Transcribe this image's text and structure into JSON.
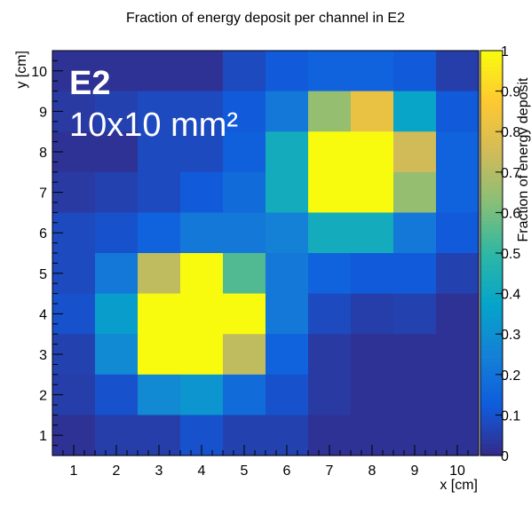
{
  "chart_data": {
    "type": "heatmap",
    "title": "Fraction of energy deposit per channel in E2",
    "xlabel": "x [cm]",
    "ylabel": "y [cm]",
    "zlabel": "Fraction of energy deposit",
    "x_ticks": [
      "1",
      "2",
      "3",
      "4",
      "5",
      "6",
      "7",
      "8",
      "9",
      "10"
    ],
    "y_ticks": [
      "1",
      "2",
      "3",
      "4",
      "5",
      "6",
      "7",
      "8",
      "9",
      "10"
    ],
    "z_ticks": [
      "0",
      "0.1",
      "0.2",
      "0.3",
      "0.4",
      "0.5",
      "0.6",
      "0.7",
      "0.8",
      "0.9",
      "1"
    ],
    "xlim": [
      0.5,
      10.5
    ],
    "ylim": [
      0.5,
      10.5
    ],
    "zlim": [
      0,
      1
    ],
    "colormap": "parula-like",
    "colorbar_colors": [
      "#352a87",
      "#0f5cdd",
      "#1481d6",
      "#06a4ca",
      "#2eb7a4",
      "#87bf77",
      "#d1bb59",
      "#fec832",
      "#f9fb0e"
    ],
    "annotations": [
      "E2",
      "10x10 mm²"
    ],
    "rows_top_to_bottom": [
      [
        0.02,
        0.02,
        0.02,
        0.02,
        0.08,
        0.12,
        0.15,
        0.15,
        0.12,
        0.05
      ],
      [
        0.04,
        0.06,
        0.08,
        0.08,
        0.12,
        0.22,
        0.65,
        0.82,
        0.38,
        0.12
      ],
      [
        0.02,
        0.02,
        0.08,
        0.08,
        0.14,
        0.42,
        1.0,
        1.0,
        0.75,
        0.15
      ],
      [
        0.04,
        0.06,
        0.08,
        0.12,
        0.18,
        0.42,
        1.0,
        1.0,
        0.65,
        0.15
      ],
      [
        0.08,
        0.1,
        0.15,
        0.22,
        0.22,
        0.25,
        0.42,
        0.42,
        0.22,
        0.12
      ],
      [
        0.08,
        0.22,
        0.72,
        1.0,
        0.55,
        0.22,
        0.15,
        0.12,
        0.12,
        0.06
      ],
      [
        0.1,
        0.35,
        1.0,
        1.0,
        1.0,
        0.22,
        0.08,
        0.05,
        0.06,
        0.02
      ],
      [
        0.06,
        0.28,
        1.0,
        1.0,
        0.72,
        0.15,
        0.04,
        0.02,
        0.02,
        0.02
      ],
      [
        0.05,
        0.1,
        0.28,
        0.32,
        0.18,
        0.1,
        0.04,
        0.02,
        0.02,
        0.02
      ],
      [
        0.02,
        0.05,
        0.05,
        0.1,
        0.06,
        0.06,
        0.02,
        0.02,
        0.02,
        0.02
      ]
    ]
  }
}
